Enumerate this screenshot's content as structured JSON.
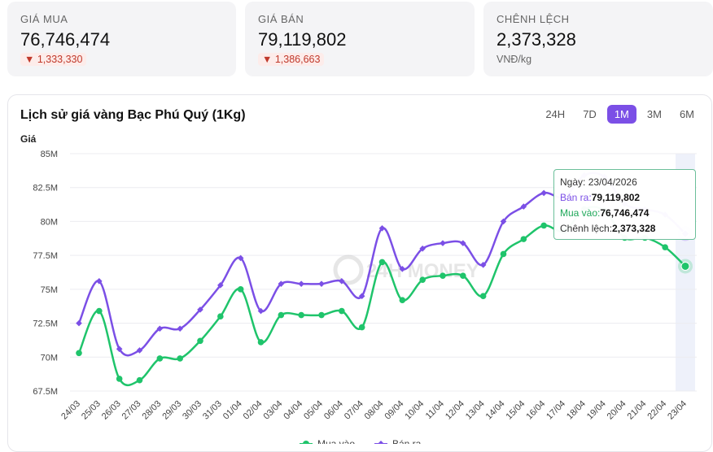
{
  "cards": [
    {
      "label": "GIÁ MUA",
      "value": "76,746,474",
      "change": "▼ 1,333,330"
    },
    {
      "label": "GIÁ BÁN",
      "value": "79,119,802",
      "change": "▼ 1,386,663"
    },
    {
      "label": "CHÊNH LỆCH",
      "value": "2,373,328",
      "unit": "VNĐ/kg"
    }
  ],
  "ranges": [
    "24H",
    "7D",
    "1M",
    "3M",
    "6M"
  ],
  "active_range": "1M",
  "watermark": "24H MONEY",
  "colors": {
    "sell": "#7b4fe6",
    "buy": "#1fc46b",
    "accent": "#7b4fe6",
    "down": "#c0392b"
  },
  "tooltip": {
    "date_label": "Ngày: ",
    "date": "23/04/2026",
    "sell_label": "Bán ra:",
    "sell_value": "79,119,802",
    "buy_label": "Mua vào:",
    "buy_value": "76,746,474",
    "spread_label": "Chênh lệch:",
    "spread_value": "2,373,328"
  },
  "legend": {
    "buy": "Mua vào",
    "sell": "Bán ra"
  },
  "chart_data": {
    "type": "line",
    "title": "Lịch sử giá vàng Bạc Phú Quý (1Kg)",
    "ylabel": "Giá",
    "xlabel": "",
    "ylim": [
      67.5,
      85
    ],
    "y_ticks": [
      67.5,
      70,
      72.5,
      75,
      77.5,
      80,
      82.5,
      85
    ],
    "y_tick_labels": [
      "67.5M",
      "70M",
      "72.5M",
      "75M",
      "77.5M",
      "80M",
      "82.5M",
      "85M"
    ],
    "grid": true,
    "categories": [
      "24/03",
      "25/03",
      "26/03",
      "27/03",
      "28/03",
      "29/03",
      "30/03",
      "31/03",
      "01/04",
      "02/04",
      "03/04",
      "04/04",
      "05/04",
      "06/04",
      "07/04",
      "08/04",
      "09/04",
      "10/04",
      "11/04",
      "12/04",
      "13/04",
      "14/04",
      "15/04",
      "16/04",
      "17/04",
      "18/04",
      "19/04",
      "20/04",
      "21/04",
      "22/04",
      "23/04"
    ],
    "series": [
      {
        "name": "Bán ra",
        "values": [
          72.5,
          75.6,
          70.6,
          70.5,
          72.1,
          72.1,
          73.5,
          75.3,
          77.3,
          73.4,
          75.4,
          75.4,
          75.4,
          75.6,
          74.5,
          79.5,
          76.5,
          78.0,
          78.4,
          78.4,
          76.8,
          80.0,
          81.1,
          82.1,
          81.8,
          83.4,
          83.3,
          81.3,
          80.9,
          80.5,
          79.1
        ]
      },
      {
        "name": "Mua vào",
        "values": [
          70.3,
          73.4,
          68.4,
          68.3,
          69.9,
          69.9,
          71.2,
          73.0,
          75.0,
          71.1,
          73.1,
          73.1,
          73.1,
          73.4,
          72.2,
          77.0,
          74.2,
          75.7,
          76.0,
          76.0,
          74.5,
          77.6,
          78.7,
          79.7,
          79.3,
          80.9,
          80.8,
          78.8,
          78.8,
          78.1,
          76.7
        ]
      }
    ]
  }
}
